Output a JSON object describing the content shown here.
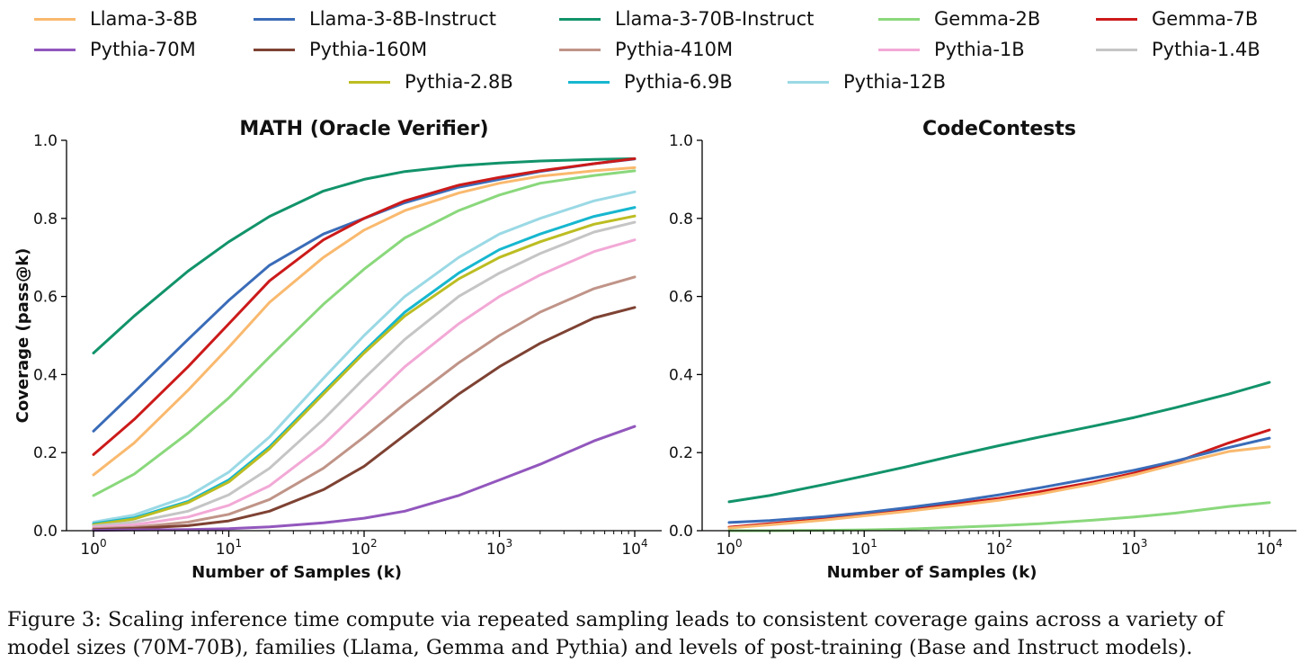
{
  "legend": [
    {
      "name": "Llama-3-8B",
      "color": "#f9b96e"
    },
    {
      "name": "Llama-3-8B-Instruct",
      "color": "#3a6cb8"
    },
    {
      "name": "Llama-3-70B-Instruct",
      "color": "#12936a"
    },
    {
      "name": "Gemma-2B",
      "color": "#8ad87c"
    },
    {
      "name": "Gemma-7B",
      "color": "#cc1a1a"
    },
    {
      "name": "Pythia-70M",
      "color": "#9257bd"
    },
    {
      "name": "Pythia-160M",
      "color": "#7e4233"
    },
    {
      "name": "Pythia-410M",
      "color": "#c09488"
    },
    {
      "name": "Pythia-1B",
      "color": "#f2a9d6"
    },
    {
      "name": "Pythia-1.4B",
      "color": "#c5c5c5"
    },
    {
      "name": "Pythia-2.8B",
      "color": "#bcbd22"
    },
    {
      "name": "Pythia-6.9B",
      "color": "#17b7cf"
    },
    {
      "name": "Pythia-12B",
      "color": "#9ad9e5"
    }
  ],
  "caption": {
    "line1": "Figure 3: Scaling inference time compute via repeated sampling leads to consistent coverage gains across a variety of",
    "line2": "model sizes (70M-70B), families (Llama, Gemma and Pythia) and levels of post-training (Base and Instruct models)."
  },
  "chart_data": [
    {
      "type": "line",
      "title": "MATH (Oracle Verifier)",
      "xlabel": "Number of Samples (k)",
      "ylabel": "Coverage (pass@k)",
      "xscale": "log",
      "xlim": [
        1,
        10000
      ],
      "ylim": [
        0,
        1.0
      ],
      "yticks": [
        0.0,
        0.2,
        0.4,
        0.6,
        0.8,
        1.0
      ],
      "ytick_labels": [
        "0.0",
        "0.2",
        "0.4",
        "0.6",
        "0.8",
        "1.0"
      ],
      "xticks": [
        1,
        10,
        100,
        1000,
        10000
      ],
      "xtick_labels": [
        [
          "10",
          "0"
        ],
        [
          "10",
          "1"
        ],
        [
          "10",
          "2"
        ],
        [
          "10",
          "3"
        ],
        [
          "10",
          "4"
        ]
      ],
      "x": [
        1,
        2,
        5,
        10,
        20,
        50,
        100,
        200,
        500,
        1000,
        2000,
        5000,
        10000
      ],
      "series": [
        {
          "name": "Llama-3-70B-Instruct",
          "color": "#12936a",
          "values": [
            0.455,
            0.55,
            0.665,
            0.74,
            0.805,
            0.87,
            0.9,
            0.92,
            0.935,
            0.942,
            0.947,
            0.951,
            0.953
          ]
        },
        {
          "name": "Llama-3-8B-Instruct",
          "color": "#3a6cb8",
          "values": [
            0.255,
            0.355,
            0.49,
            0.59,
            0.68,
            0.76,
            0.8,
            0.84,
            0.88,
            0.9,
            0.92,
            0.94,
            0.952
          ]
        },
        {
          "name": "Gemma-7B",
          "color": "#cc1a1a",
          "values": [
            0.195,
            0.285,
            0.42,
            0.53,
            0.64,
            0.745,
            0.8,
            0.845,
            0.885,
            0.905,
            0.922,
            0.94,
            0.953
          ]
        },
        {
          "name": "Llama-3-8B",
          "color": "#f9b96e",
          "values": [
            0.143,
            0.225,
            0.36,
            0.47,
            0.585,
            0.7,
            0.77,
            0.82,
            0.865,
            0.89,
            0.908,
            0.922,
            0.93
          ]
        },
        {
          "name": "Gemma-2B",
          "color": "#8ad87c",
          "values": [
            0.09,
            0.145,
            0.25,
            0.34,
            0.445,
            0.58,
            0.67,
            0.75,
            0.82,
            0.86,
            0.89,
            0.91,
            0.922
          ]
        },
        {
          "name": "Pythia-12B",
          "color": "#9ad9e5",
          "values": [
            0.022,
            0.04,
            0.088,
            0.15,
            0.24,
            0.39,
            0.5,
            0.6,
            0.7,
            0.76,
            0.8,
            0.845,
            0.868
          ]
        },
        {
          "name": "Pythia-6.9B",
          "color": "#17b7cf",
          "values": [
            0.018,
            0.033,
            0.075,
            0.13,
            0.215,
            0.355,
            0.46,
            0.56,
            0.66,
            0.72,
            0.76,
            0.805,
            0.828
          ]
        },
        {
          "name": "Pythia-2.8B",
          "color": "#bcbd22",
          "values": [
            0.015,
            0.03,
            0.072,
            0.125,
            0.21,
            0.35,
            0.455,
            0.55,
            0.645,
            0.7,
            0.74,
            0.785,
            0.806
          ]
        },
        {
          "name": "Pythia-1.4B",
          "color": "#c5c5c5",
          "values": [
            0.012,
            0.022,
            0.05,
            0.092,
            0.16,
            0.285,
            0.39,
            0.49,
            0.6,
            0.66,
            0.71,
            0.765,
            0.79
          ]
        },
        {
          "name": "Pythia-1B",
          "color": "#f2a9d6",
          "values": [
            0.008,
            0.015,
            0.035,
            0.065,
            0.115,
            0.22,
            0.32,
            0.42,
            0.53,
            0.6,
            0.655,
            0.715,
            0.745
          ]
        },
        {
          "name": "Pythia-410M",
          "color": "#c09488",
          "values": [
            0.005,
            0.009,
            0.022,
            0.042,
            0.08,
            0.16,
            0.24,
            0.325,
            0.43,
            0.5,
            0.56,
            0.62,
            0.65
          ]
        },
        {
          "name": "Pythia-160M",
          "color": "#7e4233",
          "values": [
            0.003,
            0.006,
            0.013,
            0.025,
            0.05,
            0.105,
            0.165,
            0.245,
            0.35,
            0.42,
            0.48,
            0.545,
            0.572
          ]
        },
        {
          "name": "Pythia-70M",
          "color": "#9257bd",
          "values": [
            0.001,
            0.002,
            0.003,
            0.005,
            0.01,
            0.02,
            0.032,
            0.05,
            0.09,
            0.13,
            0.17,
            0.23,
            0.267
          ]
        }
      ]
    },
    {
      "type": "line",
      "title": "CodeContests",
      "xlabel": "Number of Samples (k)",
      "ylabel": "",
      "xscale": "log",
      "xlim": [
        1,
        10000
      ],
      "ylim": [
        0,
        1.0
      ],
      "yticks": [
        0.0,
        0.2,
        0.4,
        0.6,
        0.8,
        1.0
      ],
      "ytick_labels": [
        "0.0",
        "0.2",
        "0.4",
        "0.6",
        "0.8",
        "1.0"
      ],
      "xticks": [
        1,
        10,
        100,
        1000,
        10000
      ],
      "xtick_labels": [
        [
          "10",
          "0"
        ],
        [
          "10",
          "1"
        ],
        [
          "10",
          "2"
        ],
        [
          "10",
          "3"
        ],
        [
          "10",
          "4"
        ]
      ],
      "x": [
        1,
        2,
        5,
        10,
        20,
        50,
        100,
        200,
        500,
        1000,
        2000,
        5000,
        10000
      ],
      "series": [
        {
          "name": "Llama-3-70B-Instruct",
          "color": "#12936a",
          "values": [
            0.074,
            0.09,
            0.118,
            0.14,
            0.163,
            0.195,
            0.218,
            0.24,
            0.268,
            0.29,
            0.315,
            0.35,
            0.38
          ]
        },
        {
          "name": "Gemma-7B",
          "color": "#cc1a1a",
          "values": [
            0.009,
            0.018,
            0.03,
            0.042,
            0.054,
            0.07,
            0.083,
            0.1,
            0.125,
            0.148,
            0.175,
            0.225,
            0.258
          ]
        },
        {
          "name": "Llama-3-8B-Instruct",
          "color": "#3a6cb8",
          "values": [
            0.021,
            0.026,
            0.036,
            0.046,
            0.058,
            0.076,
            0.092,
            0.11,
            0.135,
            0.155,
            0.178,
            0.213,
            0.237
          ]
        },
        {
          "name": "Llama-3-8B",
          "color": "#f9b96e",
          "values": [
            0.007,
            0.015,
            0.027,
            0.038,
            0.049,
            0.065,
            0.078,
            0.094,
            0.12,
            0.143,
            0.17,
            0.203,
            0.215
          ]
        },
        {
          "name": "Gemma-2B",
          "color": "#8ad87c",
          "values": [
            0.0,
            0.0,
            0.001,
            0.002,
            0.004,
            0.009,
            0.013,
            0.018,
            0.027,
            0.035,
            0.045,
            0.062,
            0.072
          ]
        }
      ]
    }
  ]
}
